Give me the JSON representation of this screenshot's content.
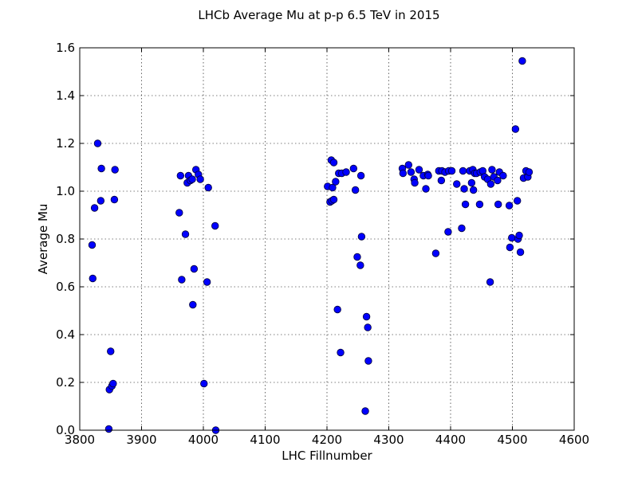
{
  "chart_data": {
    "type": "scatter",
    "title": "LHCb Average Mu at p-p 6.5 TeV in 2015",
    "xlabel": "LHC Fillnumber",
    "ylabel": "Average Mu",
    "xlim": [
      3800,
      4600
    ],
    "ylim": [
      0.0,
      1.6
    ],
    "xticks": [
      3800,
      3900,
      4000,
      4100,
      4200,
      4300,
      4400,
      4500,
      4600
    ],
    "yticks": [
      0.0,
      0.2,
      0.4,
      0.6,
      0.8,
      1.0,
      1.2,
      1.4,
      1.6
    ],
    "grid": true,
    "marker_color": "#0000ff",
    "points": [
      {
        "x": 3820,
        "y": 0.775
      },
      {
        "x": 3821,
        "y": 0.635
      },
      {
        "x": 3824,
        "y": 0.93
      },
      {
        "x": 3829,
        "y": 1.2
      },
      {
        "x": 3834,
        "y": 0.96
      },
      {
        "x": 3835,
        "y": 1.095
      },
      {
        "x": 3847,
        "y": 0.005
      },
      {
        "x": 3848,
        "y": 0.17
      },
      {
        "x": 3850,
        "y": 0.33
      },
      {
        "x": 3852,
        "y": 0.185
      },
      {
        "x": 3854,
        "y": 0.195
      },
      {
        "x": 3856,
        "y": 0.965
      },
      {
        "x": 3857,
        "y": 1.09
      },
      {
        "x": 3961,
        "y": 0.91
      },
      {
        "x": 3963,
        "y": 1.065
      },
      {
        "x": 3965,
        "y": 0.63
      },
      {
        "x": 3971,
        "y": 0.82
      },
      {
        "x": 3974,
        "y": 1.035
      },
      {
        "x": 3976,
        "y": 1.065
      },
      {
        "x": 3979,
        "y": 1.045
      },
      {
        "x": 3982,
        "y": 1.05
      },
      {
        "x": 3983,
        "y": 0.525
      },
      {
        "x": 3985,
        "y": 0.675
      },
      {
        "x": 3988,
        "y": 1.09
      },
      {
        "x": 3992,
        "y": 1.07
      },
      {
        "x": 3995,
        "y": 1.05
      },
      {
        "x": 4001,
        "y": 0.195
      },
      {
        "x": 4006,
        "y": 0.62
      },
      {
        "x": 4008,
        "y": 1.015
      },
      {
        "x": 4019,
        "y": 0.855
      },
      {
        "x": 4020,
        "y": 0.0
      },
      {
        "x": 4201,
        "y": 1.02
      },
      {
        "x": 4205,
        "y": 0.955
      },
      {
        "x": 4207,
        "y": 1.13
      },
      {
        "x": 4208,
        "y": 0.96
      },
      {
        "x": 4209,
        "y": 1.015
      },
      {
        "x": 4211,
        "y": 1.12
      },
      {
        "x": 4211,
        "y": 0.965
      },
      {
        "x": 4214,
        "y": 1.04
      },
      {
        "x": 4217,
        "y": 0.505
      },
      {
        "x": 4219,
        "y": 1.075
      },
      {
        "x": 4222,
        "y": 0.325
      },
      {
        "x": 4224,
        "y": 1.075
      },
      {
        "x": 4231,
        "y": 1.08
      },
      {
        "x": 4243,
        "y": 1.095
      },
      {
        "x": 4246,
        "y": 1.005
      },
      {
        "x": 4249,
        "y": 0.725
      },
      {
        "x": 4254,
        "y": 0.69
      },
      {
        "x": 4255,
        "y": 1.065
      },
      {
        "x": 4256,
        "y": 0.81
      },
      {
        "x": 4262,
        "y": 0.08
      },
      {
        "x": 4264,
        "y": 0.475
      },
      {
        "x": 4266,
        "y": 0.43
      },
      {
        "x": 4267,
        "y": 0.29
      },
      {
        "x": 4322,
        "y": 1.095
      },
      {
        "x": 4323,
        "y": 1.075
      },
      {
        "x": 4332,
        "y": 1.11
      },
      {
        "x": 4336,
        "y": 1.08
      },
      {
        "x": 4341,
        "y": 1.05
      },
      {
        "x": 4342,
        "y": 1.035
      },
      {
        "x": 4349,
        "y": 1.09
      },
      {
        "x": 4356,
        "y": 1.065
      },
      {
        "x": 4360,
        "y": 1.01
      },
      {
        "x": 4363,
        "y": 1.07
      },
      {
        "x": 4364,
        "y": 1.065
      },
      {
        "x": 4376,
        "y": 0.74
      },
      {
        "x": 4381,
        "y": 1.085
      },
      {
        "x": 4385,
        "y": 1.045
      },
      {
        "x": 4386,
        "y": 1.085
      },
      {
        "x": 4391,
        "y": 1.08
      },
      {
        "x": 4396,
        "y": 0.83
      },
      {
        "x": 4397,
        "y": 1.085
      },
      {
        "x": 4402,
        "y": 1.085
      },
      {
        "x": 4410,
        "y": 1.03
      },
      {
        "x": 4418,
        "y": 0.845
      },
      {
        "x": 4420,
        "y": 1.085
      },
      {
        "x": 4422,
        "y": 1.01
      },
      {
        "x": 4424,
        "y": 0.945
      },
      {
        "x": 4431,
        "y": 1.085
      },
      {
        "x": 4434,
        "y": 1.035
      },
      {
        "x": 4436,
        "y": 1.09
      },
      {
        "x": 4437,
        "y": 1.005
      },
      {
        "x": 4439,
        "y": 1.075
      },
      {
        "x": 4442,
        "y": 1.075
      },
      {
        "x": 4447,
        "y": 0.945
      },
      {
        "x": 4448,
        "y": 1.08
      },
      {
        "x": 4452,
        "y": 1.085
      },
      {
        "x": 4455,
        "y": 1.06
      },
      {
        "x": 4460,
        "y": 1.05
      },
      {
        "x": 4464,
        "y": 0.62
      },
      {
        "x": 4465,
        "y": 1.03
      },
      {
        "x": 4467,
        "y": 1.09
      },
      {
        "x": 4470,
        "y": 1.06
      },
      {
        "x": 4476,
        "y": 1.045
      },
      {
        "x": 4477,
        "y": 0.945
      },
      {
        "x": 4479,
        "y": 1.08
      },
      {
        "x": 4485,
        "y": 1.065
      },
      {
        "x": 4495,
        "y": 0.94
      },
      {
        "x": 4496,
        "y": 0.765
      },
      {
        "x": 4499,
        "y": 0.805
      },
      {
        "x": 4505,
        "y": 1.26
      },
      {
        "x": 4508,
        "y": 0.96
      },
      {
        "x": 4509,
        "y": 0.8
      },
      {
        "x": 4511,
        "y": 0.815
      },
      {
        "x": 4513,
        "y": 0.745
      },
      {
        "x": 4516,
        "y": 1.545
      },
      {
        "x": 4518,
        "y": 1.055
      },
      {
        "x": 4522,
        "y": 1.085
      },
      {
        "x": 4525,
        "y": 1.06
      },
      {
        "x": 4527,
        "y": 1.08
      }
    ]
  }
}
